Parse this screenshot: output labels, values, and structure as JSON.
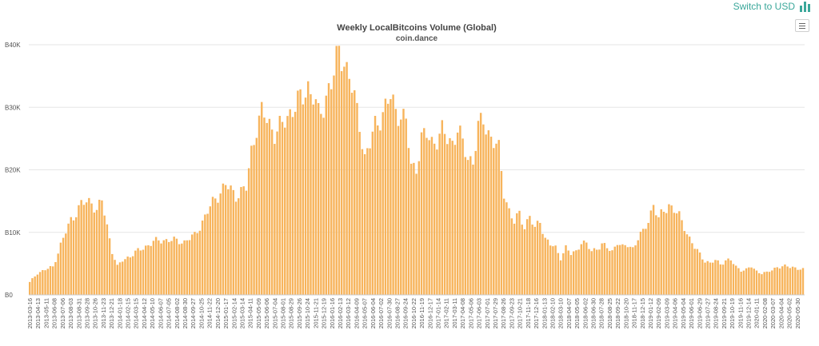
{
  "header": {
    "switch_label": "Switch to USD",
    "switch_icon": "bar-chart-icon",
    "accent_color": "#3aa79a",
    "menu_icon": "hamburger-menu-icon"
  },
  "chart_data": {
    "type": "bar",
    "title": "Weekly LocalBitcoins Volume (Global)",
    "subtitle": "coin.dance",
    "xlabel": "",
    "ylabel": "",
    "ylim": [
      0,
      40000
    ],
    "yticks": [
      {
        "value": 0,
        "label": "B0"
      },
      {
        "value": 10000,
        "label": "B10K"
      },
      {
        "value": 20000,
        "label": "B20K"
      },
      {
        "value": 30000,
        "label": "B30K"
      },
      {
        "value": 40000,
        "label": "B40K"
      }
    ],
    "bar_color": "#f7b45c",
    "grid": true,
    "x_tick_labels": [
      "2013-03-16",
      "2013-04-13",
      "2013-05-11",
      "2013-06-08",
      "2013-07-06",
      "2013-08-03",
      "2013-08-31",
      "2013-09-28",
      "2013-10-26",
      "2013-11-23",
      "2013-12-21",
      "2014-01-18",
      "2014-02-15",
      "2014-03-15",
      "2014-04-12",
      "2014-05-10",
      "2014-06-07",
      "2014-07-05",
      "2014-08-02",
      "2014-08-30",
      "2014-09-27",
      "2014-10-25",
      "2014-11-22",
      "2014-12-20",
      "2015-01-17",
      "2015-02-14",
      "2015-03-14",
      "2015-04-11",
      "2015-05-09",
      "2015-06-06",
      "2015-07-04",
      "2015-08-01",
      "2015-08-29",
      "2015-09-26",
      "2015-10-24",
      "2015-11-21",
      "2015-12-19",
      "2016-01-16",
      "2016-02-13",
      "2016-03-12",
      "2016-04-09",
      "2016-05-07",
      "2016-06-04",
      "2016-07-02",
      "2016-07-30",
      "2016-08-27",
      "2016-09-24",
      "2016-10-22",
      "2016-11-19",
      "2016-12-17",
      "2017-01-14",
      "2017-02-11",
      "2017-03-11",
      "2017-04-08",
      "2017-05-06",
      "2017-06-03",
      "2017-07-01",
      "2017-07-29",
      "2017-08-26",
      "2017-09-23",
      "2017-10-21",
      "2017-11-18",
      "2017-12-16",
      "2018-01-13",
      "2018-02-10",
      "2018-03-10",
      "2018-04-07",
      "2018-05-05",
      "2018-06-02",
      "2018-06-30",
      "2018-07-28",
      "2018-08-25",
      "2018-09-22",
      "2018-10-20",
      "2018-11-17",
      "2018-12-15",
      "2019-01-12",
      "2019-02-09",
      "2019-03-09",
      "2019-04-06",
      "2019-05-04",
      "2019-06-01",
      "2019-06-29",
      "2019-07-27",
      "2019-08-24",
      "2019-09-21",
      "2019-10-19",
      "2019-11-16",
      "2019-12-14",
      "2020-01-11",
      "2020-02-08",
      "2020-03-07",
      "2020-04-04",
      "2020-05-02",
      "2020-05-30"
    ],
    "anchors": [
      [
        0,
        2000
      ],
      [
        3,
        3500
      ],
      [
        6,
        4000
      ],
      [
        9,
        4500
      ],
      [
        12,
        8000
      ],
      [
        16,
        12000
      ],
      [
        20,
        14500
      ],
      [
        24,
        15000
      ],
      [
        26,
        13500
      ],
      [
        28,
        15000
      ],
      [
        30,
        11000
      ],
      [
        32,
        7000
      ],
      [
        34,
        4500
      ],
      [
        36,
        5500
      ],
      [
        40,
        6500
      ],
      [
        44,
        7500
      ],
      [
        48,
        8500
      ],
      [
        52,
        8800
      ],
      [
        56,
        8700
      ],
      [
        60,
        8500
      ],
      [
        64,
        9500
      ],
      [
        68,
        12500
      ],
      [
        72,
        15500
      ],
      [
        76,
        17500
      ],
      [
        80,
        16000
      ],
      [
        84,
        17000
      ],
      [
        86,
        23000
      ],
      [
        88,
        27000
      ],
      [
        90,
        29000
      ],
      [
        92,
        28000
      ],
      [
        95,
        26000
      ],
      [
        98,
        27000
      ],
      [
        102,
        30000
      ],
      [
        106,
        31500
      ],
      [
        108,
        33500
      ],
      [
        110,
        32000
      ],
      [
        112,
        28500
      ],
      [
        114,
        30000
      ],
      [
        116,
        33500
      ],
      [
        118,
        35000
      ],
      [
        120,
        39000
      ],
      [
        122,
        37500
      ],
      [
        124,
        35000
      ],
      [
        126,
        31000
      ],
      [
        128,
        27500
      ],
      [
        130,
        22000
      ],
      [
        132,
        24000
      ],
      [
        134,
        27000
      ],
      [
        136,
        28500
      ],
      [
        138,
        30000
      ],
      [
        140,
        31500
      ],
      [
        142,
        29500
      ],
      [
        144,
        29000
      ],
      [
        146,
        27500
      ],
      [
        148,
        20500
      ],
      [
        150,
        20500
      ],
      [
        152,
        25000
      ],
      [
        154,
        25500
      ],
      [
        156,
        24500
      ],
      [
        158,
        25000
      ],
      [
        160,
        26000
      ],
      [
        162,
        25000
      ],
      [
        164,
        24500
      ],
      [
        166,
        26500
      ],
      [
        168,
        24000
      ],
      [
        170,
        22000
      ],
      [
        172,
        21500
      ],
      [
        174,
        26500
      ],
      [
        176,
        28000
      ],
      [
        178,
        26000
      ],
      [
        180,
        24500
      ],
      [
        182,
        23000
      ],
      [
        184,
        16500
      ],
      [
        186,
        13500
      ],
      [
        188,
        11500
      ],
      [
        190,
        13000
      ],
      [
        192,
        11000
      ],
      [
        194,
        12500
      ],
      [
        196,
        10500
      ],
      [
        198,
        12000
      ],
      [
        200,
        9000
      ],
      [
        202,
        8000
      ],
      [
        204,
        7500
      ],
      [
        206,
        6000
      ],
      [
        208,
        7500
      ],
      [
        210,
        6500
      ],
      [
        212,
        7000
      ],
      [
        214,
        8500
      ],
      [
        216,
        8000
      ],
      [
        218,
        7000
      ],
      [
        220,
        7500
      ],
      [
        222,
        8000
      ],
      [
        224,
        7500
      ],
      [
        226,
        7000
      ],
      [
        228,
        8500
      ],
      [
        230,
        7500
      ],
      [
        232,
        8000
      ],
      [
        234,
        7500
      ],
      [
        236,
        9000
      ],
      [
        238,
        10000
      ],
      [
        240,
        12000
      ],
      [
        242,
        14500
      ],
      [
        244,
        12000
      ],
      [
        246,
        13500
      ],
      [
        248,
        14500
      ],
      [
        250,
        13500
      ],
      [
        252,
        12500
      ],
      [
        254,
        11000
      ],
      [
        256,
        9000
      ],
      [
        258,
        7500
      ],
      [
        260,
        6500
      ],
      [
        262,
        5500
      ],
      [
        264,
        5000
      ],
      [
        266,
        5500
      ],
      [
        268,
        5000
      ],
      [
        270,
        5500
      ],
      [
        272,
        5500
      ],
      [
        274,
        4500
      ],
      [
        276,
        4000
      ],
      [
        278,
        4000
      ],
      [
        280,
        4500
      ],
      [
        282,
        3800
      ],
      [
        284,
        3500
      ],
      [
        286,
        3500
      ],
      [
        288,
        4000
      ],
      [
        290,
        4500
      ],
      [
        292,
        4500
      ],
      [
        294,
        4500
      ],
      [
        296,
        4500
      ],
      [
        298,
        4200
      ],
      [
        300,
        4000
      ]
    ]
  }
}
